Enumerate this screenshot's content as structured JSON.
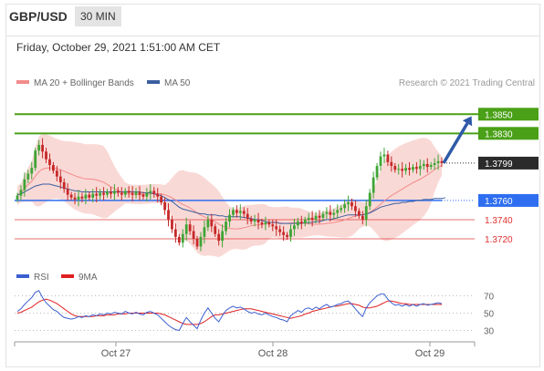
{
  "header": {
    "pair": "GBP/USD",
    "timeframe": "30 MIN",
    "timestamp": "Friday, October 29, 2021 1:51:00 AM CET"
  },
  "chart_data": [
    {
      "type": "candlestick",
      "legend": [
        {
          "name": "MA 20 + Bollinger Bands",
          "color": "#f28b8b"
        },
        {
          "name": "MA 50",
          "color": "#3a5f9f"
        }
      ],
      "credit": "Research © 2021 Trading Central",
      "ylim": [
        1.37,
        1.3875
      ],
      "x_ticks": [
        "Oct 27",
        "Oct 28",
        "Oct 29"
      ],
      "grid": false,
      "price_levels": [
        {
          "value": 1.385,
          "label": "1.3850",
          "color": "#4aa017",
          "kind": "resistance"
        },
        {
          "value": 1.383,
          "label": "1.3830",
          "color": "#4aa017",
          "kind": "resistance"
        },
        {
          "value": 1.3799,
          "label": "1.3799",
          "color": "#2b2b2b",
          "kind": "last"
        },
        {
          "value": 1.376,
          "label": "1.3760",
          "color": "#2f6ef0",
          "kind": "pivot"
        },
        {
          "value": 1.374,
          "label": "1.3740",
          "color": "#e03030",
          "kind": "support"
        },
        {
          "value": 1.372,
          "label": "1.3720",
          "color": "#e03030",
          "kind": "support"
        }
      ],
      "close": [
        1.3765,
        1.3771,
        1.3782,
        1.3788,
        1.3794,
        1.3812,
        1.3818,
        1.3811,
        1.3803,
        1.3797,
        1.3791,
        1.3785,
        1.3779,
        1.3772,
        1.3766,
        1.3763,
        1.3761,
        1.3764,
        1.3762,
        1.3766,
        1.3763,
        1.3767,
        1.3765,
        1.3768,
        1.3766,
        1.3769,
        1.3767,
        1.377,
        1.3768,
        1.3766,
        1.377,
        1.3768,
        1.3766,
        1.3769,
        1.3766,
        1.3764,
        1.3768,
        1.377,
        1.3767,
        1.3764,
        1.3758,
        1.375,
        1.374,
        1.373,
        1.3722,
        1.3716,
        1.3725,
        1.3735,
        1.3728,
        1.372,
        1.3712,
        1.3722,
        1.3732,
        1.374,
        1.3733,
        1.3725,
        1.3718,
        1.3728,
        1.3738,
        1.3745,
        1.375,
        1.3747,
        1.3749,
        1.3746,
        1.3741,
        1.3738,
        1.374,
        1.3737,
        1.3735,
        1.3737,
        1.3735,
        1.3733,
        1.373,
        1.3727,
        1.3724,
        1.3722,
        1.373,
        1.3734,
        1.3738,
        1.3736,
        1.374,
        1.3742,
        1.374,
        1.3744,
        1.3742,
        1.3746,
        1.3748,
        1.3745,
        1.3747,
        1.375,
        1.3752,
        1.3756,
        1.3758,
        1.3754,
        1.3749,
        1.3744,
        1.374,
        1.3754,
        1.3768,
        1.3784,
        1.3796,
        1.3806,
        1.3808,
        1.38,
        1.3796,
        1.3792,
        1.3793,
        1.3791,
        1.3794,
        1.3792,
        1.3795,
        1.3793,
        1.3796,
        1.3798,
        1.3795,
        1.3797,
        1.3799,
        1.3801,
        1.3799
      ],
      "ma50": [
        1.3766,
        1.3767,
        1.3769,
        1.3771,
        1.3773,
        1.3775,
        1.3776,
        1.3777,
        1.3777,
        1.3777,
        1.3776,
        1.3775,
        1.3774,
        1.3773,
        1.3772,
        1.3771,
        1.377,
        1.377,
        1.3769,
        1.3769,
        1.3769,
        1.3769,
        1.3769,
        1.3769,
        1.3769,
        1.3769,
        1.3769,
        1.3769,
        1.3769,
        1.3769,
        1.3769,
        1.3769,
        1.3769,
        1.3769,
        1.3769,
        1.3768,
        1.3768,
        1.3768,
        1.3767,
        1.3766,
        1.3765,
        1.3763,
        1.3761,
        1.3759,
        1.3756,
        1.3753,
        1.3751,
        1.375,
        1.3749,
        1.3748,
        1.3747,
        1.3746,
        1.3746,
        1.3745,
        1.3745,
        1.3745,
        1.3744,
        1.3744,
        1.3743,
        1.3743,
        1.3743,
        1.3743,
        1.3743,
        1.3742,
        1.3742,
        1.3741,
        1.374,
        1.374,
        1.3739,
        1.3738,
        1.3737,
        1.3737,
        1.3737,
        1.3736,
        1.3736,
        1.3736,
        1.3736,
        1.3736,
        1.3736,
        1.3736,
        1.3737,
        1.3737,
        1.3737,
        1.3738,
        1.3738,
        1.3739,
        1.374,
        1.374,
        1.3741,
        1.3742,
        1.3743,
        1.3744,
        1.3745,
        1.3745,
        1.3745,
        1.3745,
        1.3745,
        1.3746,
        1.3747,
        1.3749,
        1.3751,
        1.3753,
        1.3754,
        1.3755,
        1.3756,
        1.3757,
        1.3757,
        1.3758,
        1.3758,
        1.3759,
        1.3759,
        1.376,
        1.376,
        1.3761,
        1.3761,
        1.3761,
        1.3762,
        1.3762,
        1.3762,
        1.3763
      ],
      "forecast_arrow": {
        "from": 1.3799,
        "to": 1.385
      }
    },
    {
      "type": "line",
      "series": [
        {
          "name": "RSI",
          "color": "#3b5fd0"
        },
        {
          "name": "9MA",
          "color": "#e02020"
        }
      ],
      "ylim": [
        20,
        80
      ],
      "y_ticks": [
        70,
        50,
        30
      ],
      "rsi": [
        52,
        55,
        60,
        64,
        68,
        74,
        76,
        68,
        62,
        58,
        54,
        52,
        48,
        45,
        44,
        43,
        44,
        46,
        45,
        47,
        46,
        48,
        47,
        49,
        48,
        50,
        49,
        51,
        50,
        49,
        52,
        50,
        49,
        51,
        49,
        48,
        51,
        52,
        50,
        48,
        44,
        40,
        36,
        33,
        31,
        30,
        38,
        45,
        40,
        36,
        32,
        42,
        50,
        56,
        50,
        44,
        40,
        47,
        53,
        56,
        58,
        56,
        57,
        55,
        52,
        50,
        51,
        49,
        48,
        50,
        48,
        46,
        45,
        43,
        42,
        40,
        47,
        50,
        53,
        51,
        55,
        56,
        54,
        57,
        55,
        58,
        60,
        57,
        58,
        60,
        61,
        63,
        64,
        60,
        55,
        50,
        46,
        56,
        62,
        66,
        70,
        72,
        72,
        66,
        62,
        59,
        60,
        58,
        60,
        58,
        60,
        58,
        60,
        61,
        59,
        60,
        61,
        62,
        61
      ],
      "ma9": [
        50,
        51,
        53,
        55,
        57,
        60,
        63,
        65,
        66,
        65,
        63,
        61,
        58,
        55,
        52,
        49,
        47,
        46,
        46,
        46,
        46,
        46,
        47,
        47,
        47,
        48,
        48,
        48,
        49,
        49,
        49,
        50,
        50,
        50,
        50,
        50,
        50,
        50,
        50,
        50,
        49,
        48,
        46,
        44,
        42,
        40,
        38,
        37,
        37,
        37,
        37,
        38,
        40,
        43,
        46,
        48,
        48,
        49,
        50,
        51,
        52,
        53,
        54,
        55,
        55,
        55,
        54,
        53,
        52,
        51,
        50,
        49,
        48,
        47,
        46,
        45,
        44,
        45,
        46,
        47,
        49,
        50,
        52,
        53,
        54,
        55,
        56,
        57,
        58,
        58,
        59,
        60,
        61,
        61,
        60,
        59,
        57,
        56,
        56,
        57,
        58,
        60,
        62,
        64,
        64,
        63,
        62,
        61,
        61,
        60,
        60,
        60,
        60,
        60,
        60,
        60,
        60,
        60,
        60
      ]
    }
  ]
}
